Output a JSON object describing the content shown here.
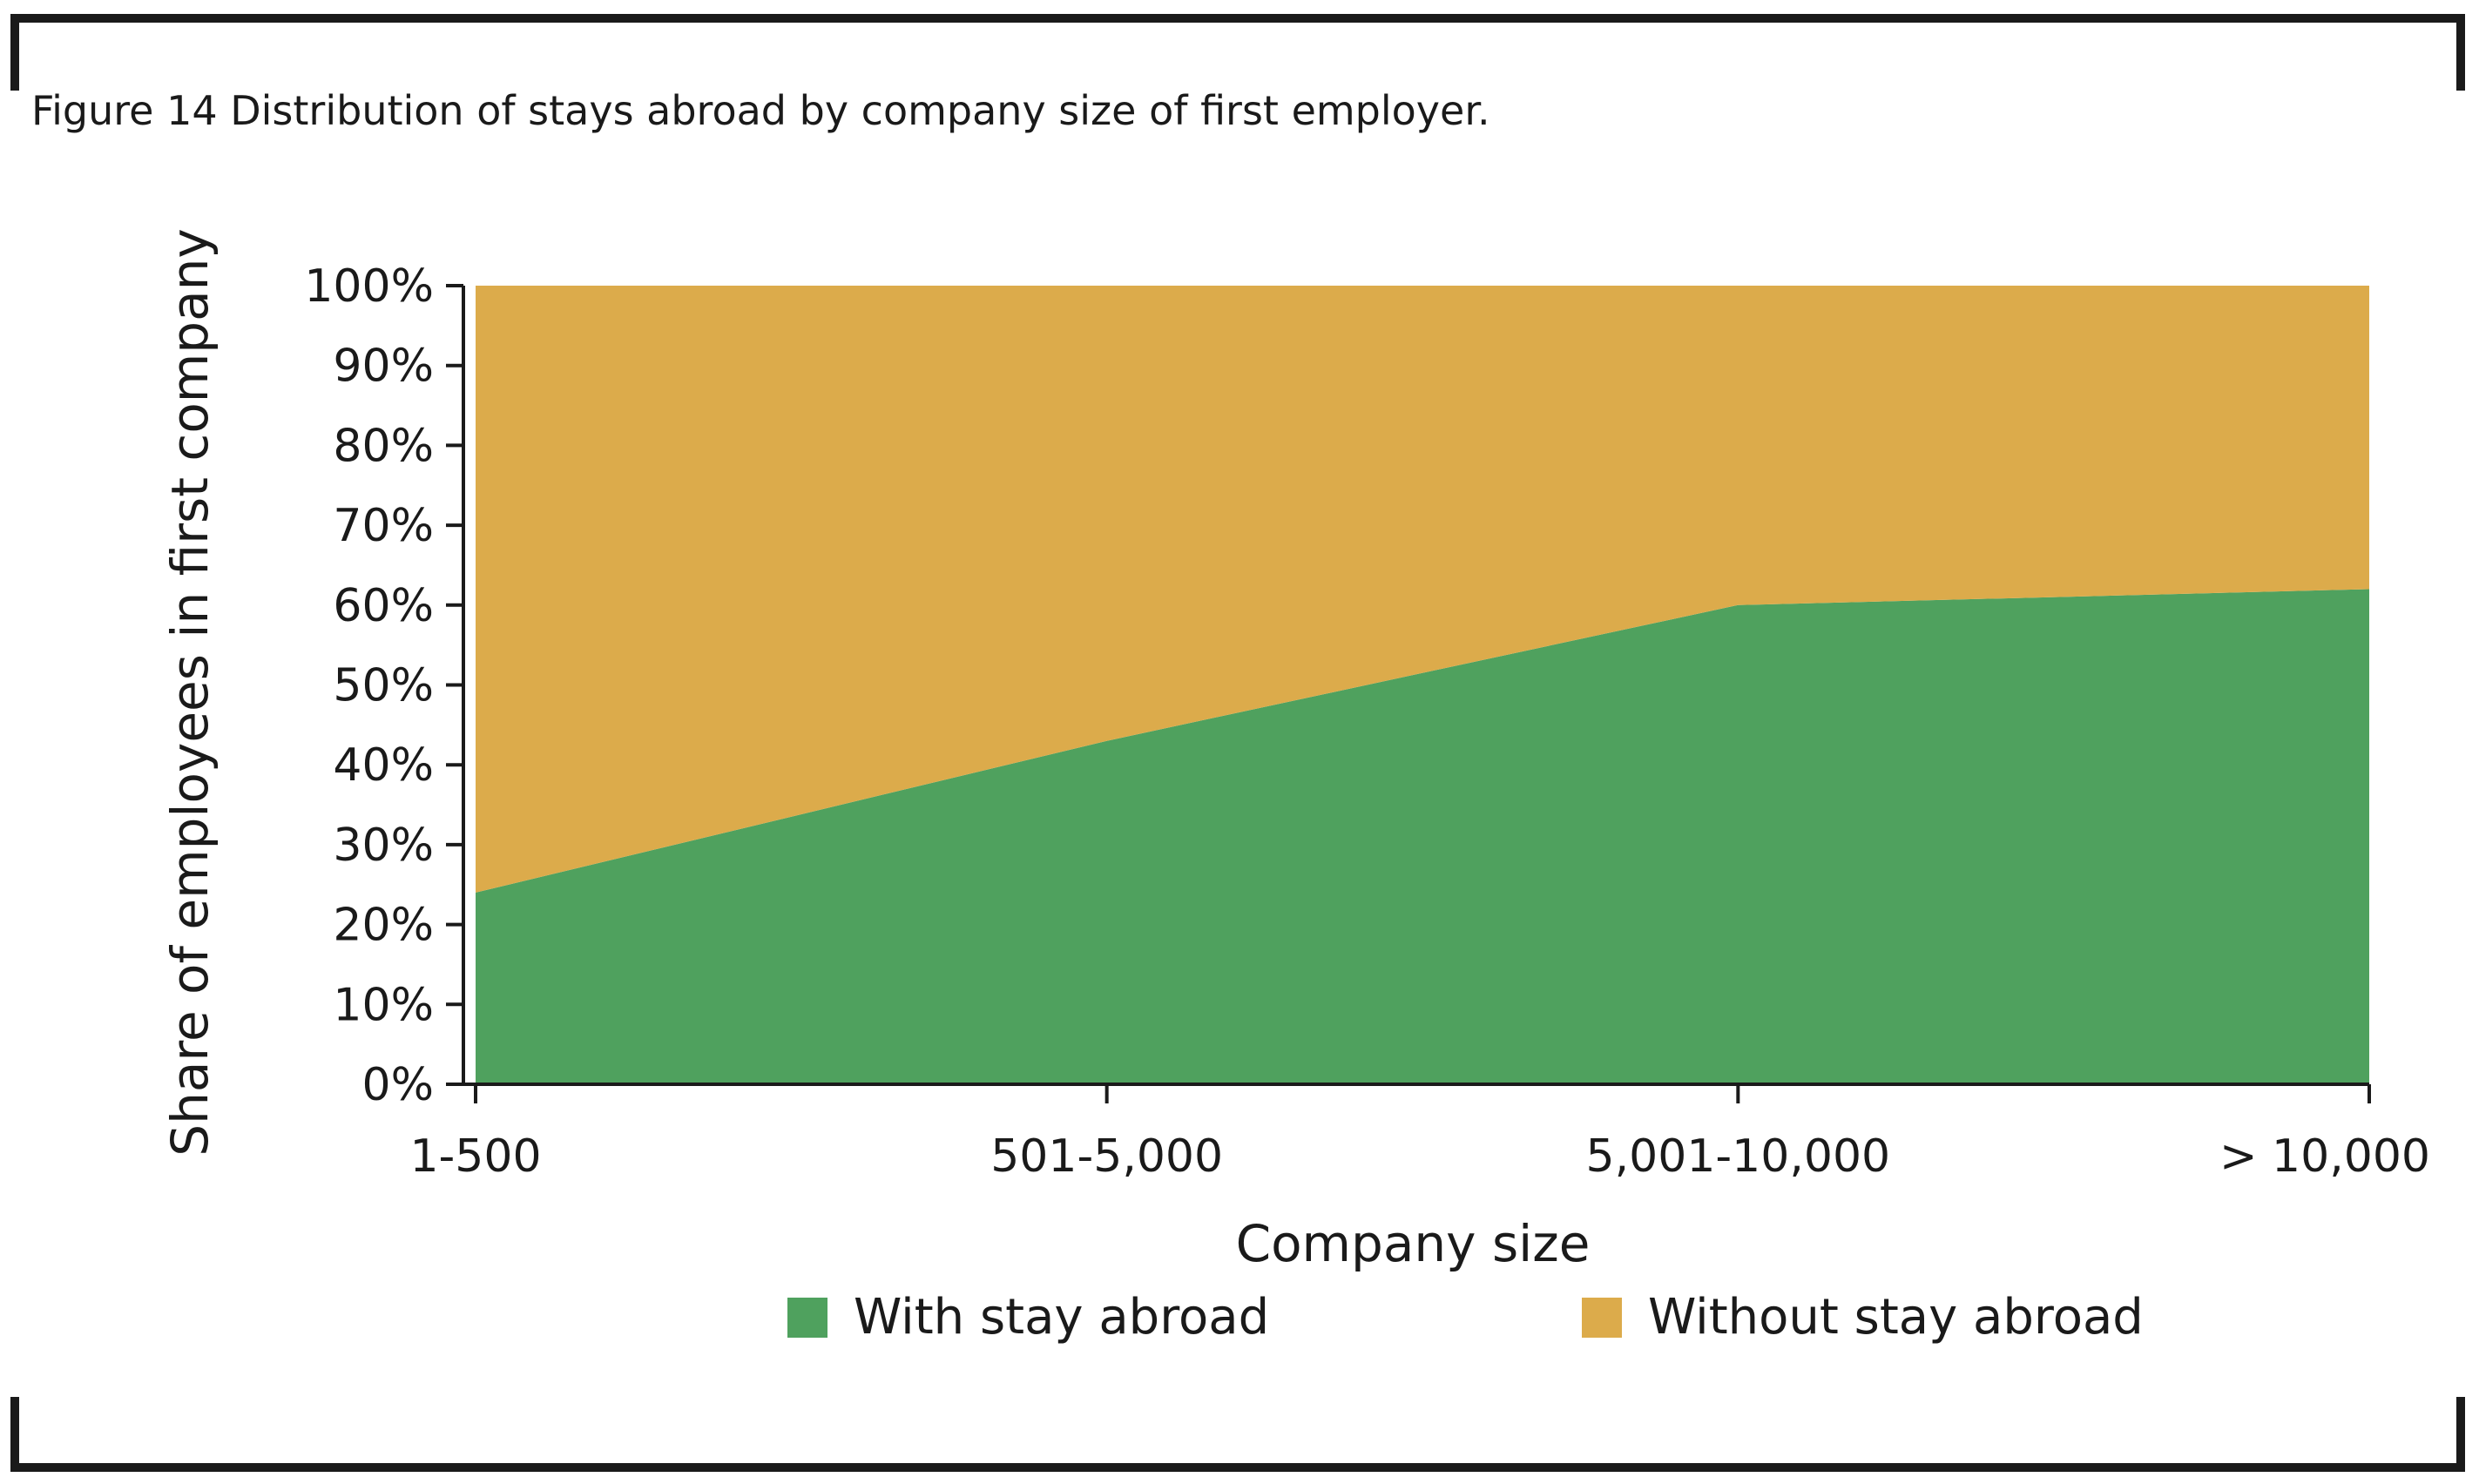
{
  "figure": {
    "title": "Figure 14 Distribution of stays abroad by company size of first employer."
  },
  "chart_data": {
    "type": "area",
    "stacked": true,
    "categories": [
      "1-500",
      "501-5,000",
      "5,001-10,000",
      "> 10,000"
    ],
    "series": [
      {
        "name": "With stay abroad",
        "values": [
          24,
          43,
          60,
          62
        ],
        "color": "#4fa15e"
      },
      {
        "name": "Without stay abroad",
        "values": [
          76,
          57,
          40,
          38
        ],
        "color": "#dcab4b"
      }
    ],
    "xlabel": "Company size",
    "ylabel": "Share of employees in first company",
    "ylim": [
      0,
      100
    ],
    "yticks": [
      "0%",
      "10%",
      "20%",
      "30%",
      "40%",
      "50%",
      "60%",
      "70%",
      "80%",
      "90%",
      "100%"
    ],
    "grid": false,
    "legend_position": "bottom"
  }
}
